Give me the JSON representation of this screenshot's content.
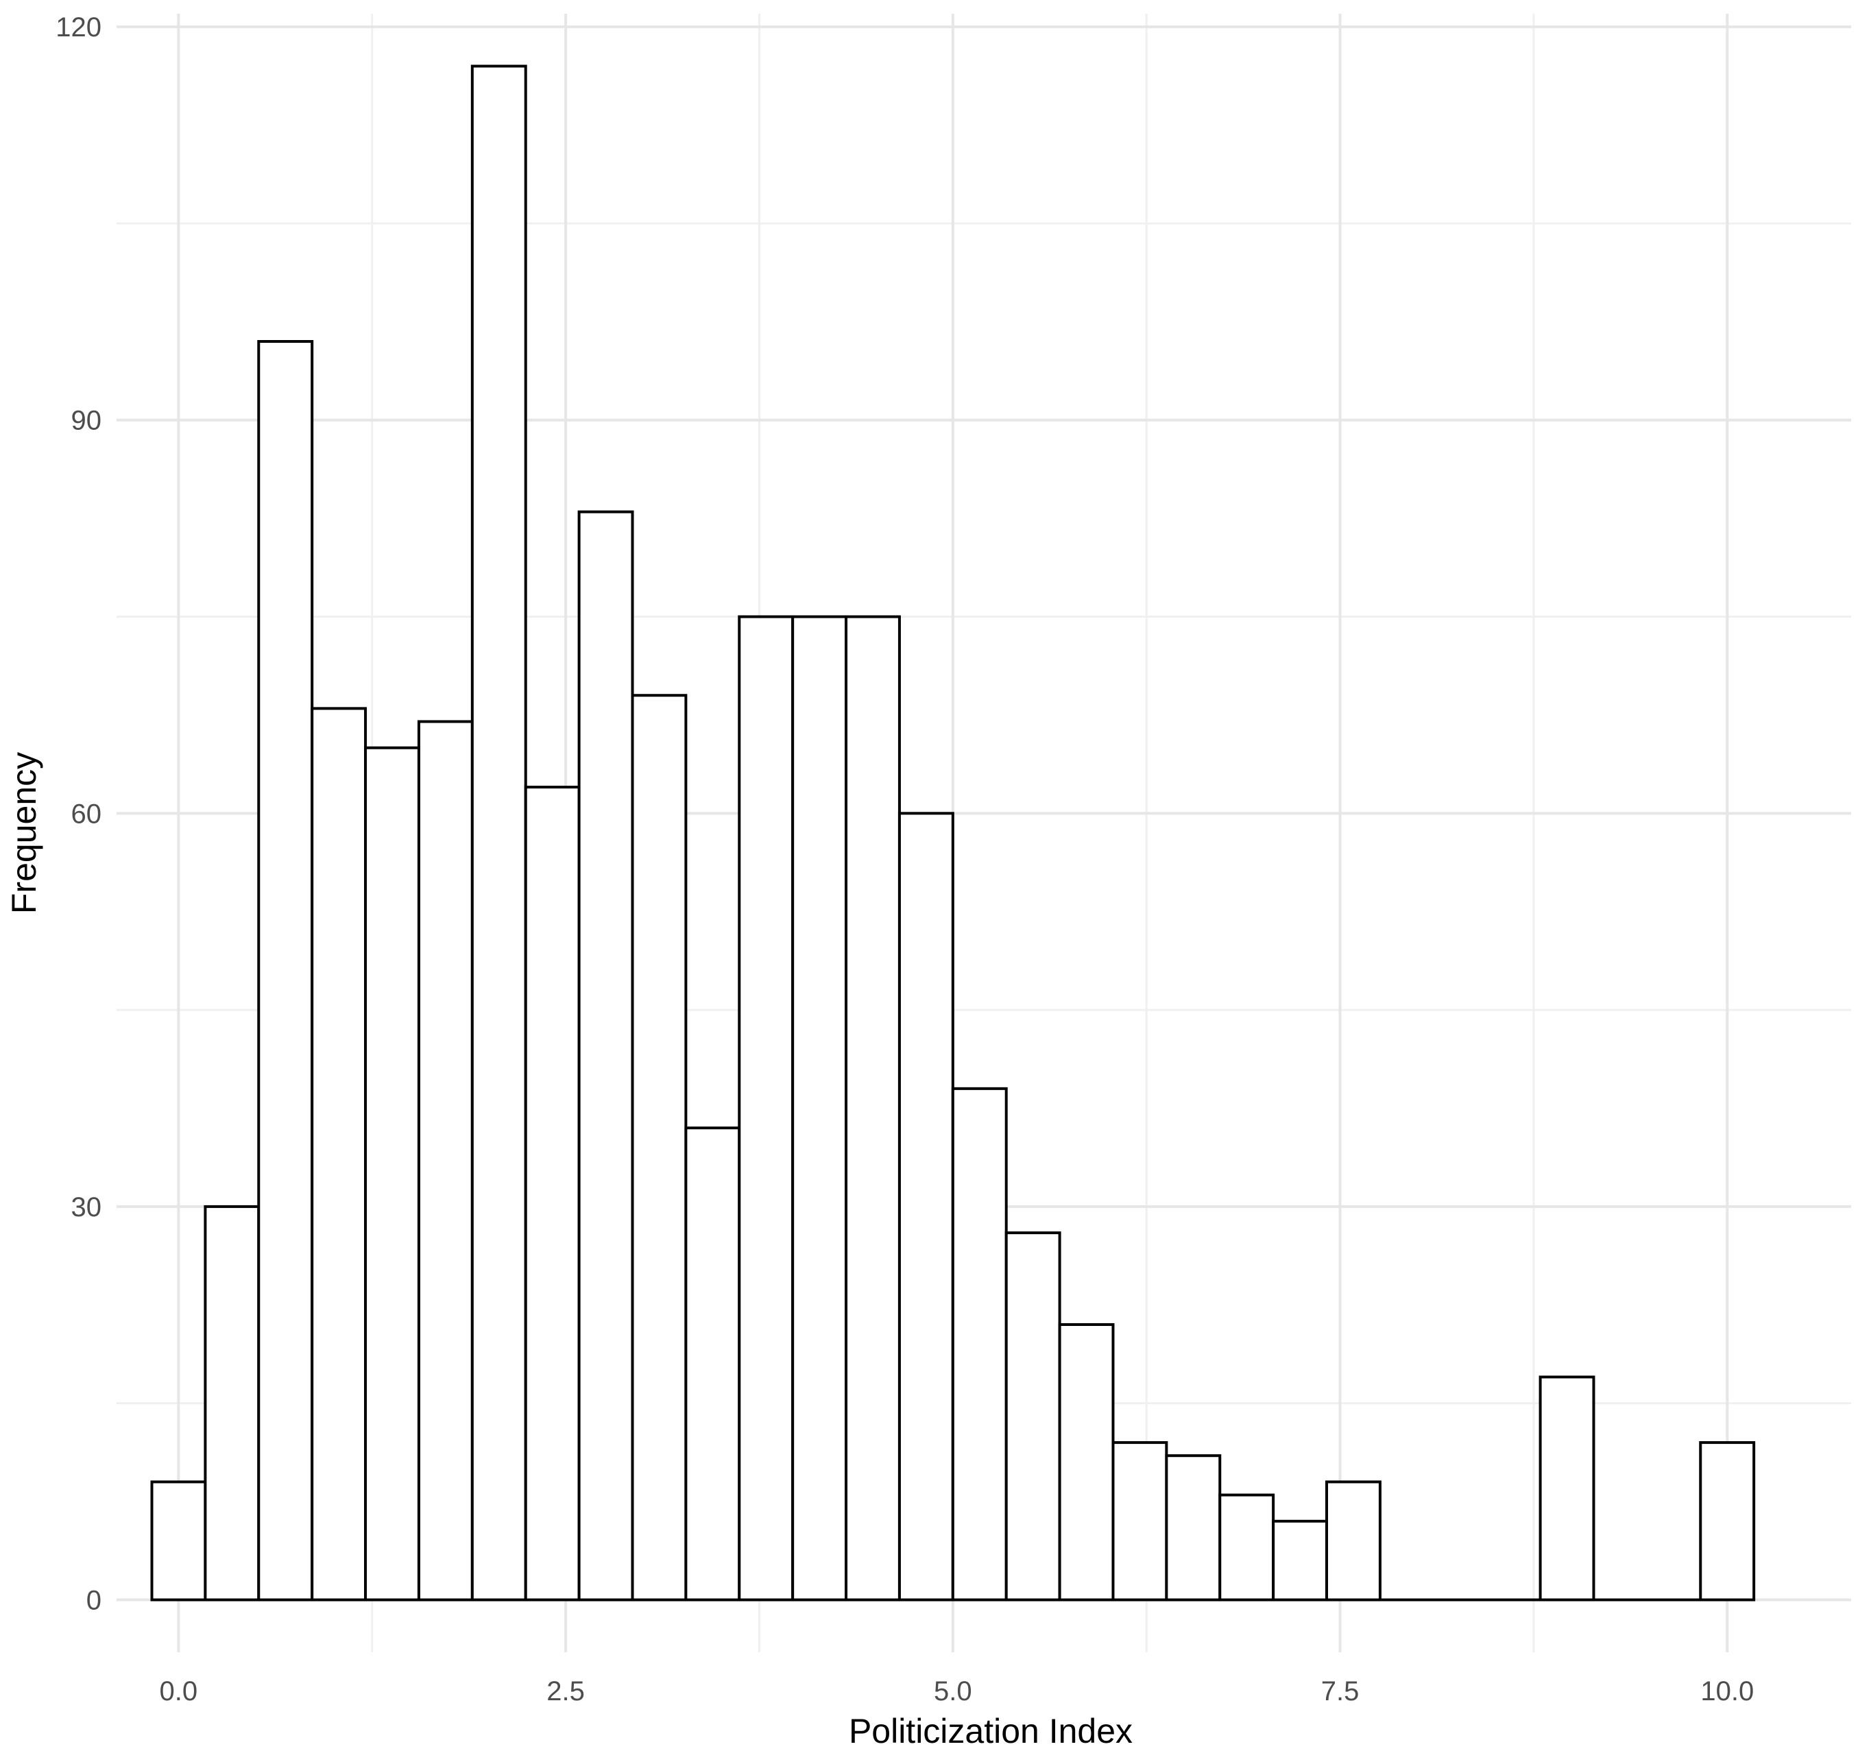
{
  "chart_data": {
    "type": "bar",
    "subtype": "histogram",
    "title": "",
    "xlabel": "Politicization Index",
    "ylabel": "Frequency",
    "xlim": [
      -0.4,
      10.8
    ],
    "ylim": [
      -4,
      121
    ],
    "x_ticks": [
      0.0,
      2.5,
      5.0,
      7.5,
      10.0
    ],
    "x_tick_labels": [
      "0.0",
      "2.5",
      "5.0",
      "7.5",
      "10.0"
    ],
    "y_ticks": [
      0,
      30,
      60,
      90,
      120
    ],
    "y_tick_labels": [
      "0",
      "30",
      "60",
      "90",
      "120"
    ],
    "grid": true,
    "legend": "none",
    "bin_width": 0.3448,
    "bin_start": -0.172,
    "values": [
      9,
      30,
      96,
      68,
      65,
      67,
      117,
      62,
      83,
      69,
      36,
      75,
      75,
      75,
      60,
      39,
      28,
      21,
      12,
      11,
      8,
      6,
      9,
      0,
      0,
      0,
      17,
      0,
      0,
      12
    ],
    "values_note_ignore": null
  },
  "colors": {
    "bar_fill": "#ffffff",
    "bar_stroke": "#000000",
    "grid": "#e6e6e6"
  }
}
